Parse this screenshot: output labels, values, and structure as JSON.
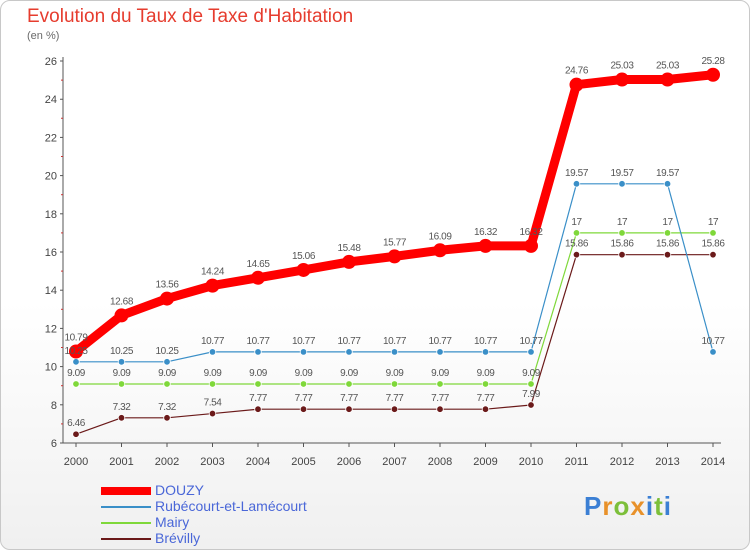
{
  "title": "Evolution du Taux de Taxe d'Habitation",
  "subtitle": "(en %)",
  "chart_data": {
    "type": "line",
    "title": "Evolution du Taux de Taxe d'Habitation",
    "ylabel": "(en %)",
    "xlabel": "",
    "ylim": [
      6,
      26
    ],
    "yticks": [
      6,
      8,
      10,
      12,
      14,
      16,
      18,
      20,
      22,
      24,
      26
    ],
    "grid": false,
    "legend_position": "bottom-left",
    "categories": [
      "2000",
      "2001",
      "2002",
      "2003",
      "2004",
      "2005",
      "2006",
      "2007",
      "2008",
      "2009",
      "2010",
      "2011",
      "2012",
      "2013",
      "2014"
    ],
    "series": [
      {
        "name": "DOUZY",
        "color": "#ff0000",
        "values": [
          10.79,
          12.68,
          13.56,
          14.24,
          14.65,
          15.06,
          15.48,
          15.77,
          16.09,
          16.32,
          16.32,
          24.76,
          25.03,
          25.03,
          25.28
        ],
        "labels": [
          "10.79",
          "12.68",
          "13.56",
          "14.24",
          "14.65",
          "15.06",
          "15.48",
          "15.77",
          "16.09",
          "16.32",
          "16.32",
          "24.76",
          "25.03",
          "25.03",
          "25.28"
        ]
      },
      {
        "name": "Rubécourt-et-Lamécourt",
        "color": "#3a8fc8",
        "values": [
          10.25,
          10.25,
          10.25,
          10.77,
          10.77,
          10.77,
          10.77,
          10.77,
          10.77,
          10.77,
          10.77,
          19.57,
          19.57,
          19.57,
          10.77
        ],
        "labels": [
          "10.25",
          "10.25",
          "10.25",
          "10.77",
          "10.77",
          "10.77",
          "10.77",
          "10.77",
          "10.77",
          "10.77",
          "10.77",
          "19.57",
          "19.57",
          "19.57",
          "10.77"
        ]
      },
      {
        "name": "Mairy",
        "color": "#7fd83a",
        "values": [
          9.09,
          9.09,
          9.09,
          9.09,
          9.09,
          9.09,
          9.09,
          9.09,
          9.09,
          9.09,
          9.09,
          17,
          17,
          17,
          17
        ],
        "labels": [
          "9.09",
          "9.09",
          "9.09",
          "9.09",
          "9.09",
          "9.09",
          "9.09",
          "9.09",
          "9.09",
          "9.09",
          "9.09",
          "17",
          "17",
          "17",
          "17"
        ]
      },
      {
        "name": "Brévilly",
        "color": "#6b1a1a",
        "values": [
          6.46,
          7.32,
          7.32,
          7.54,
          7.77,
          7.77,
          7.77,
          7.77,
          7.77,
          7.77,
          7.99,
          15.86,
          15.86,
          15.86,
          15.86
        ],
        "labels": [
          "6.46",
          "7.32",
          "7.32",
          "7.54",
          "7.77",
          "7.77",
          "7.77",
          "7.77",
          "7.77",
          "7.77",
          "7.99",
          "15.86",
          "15.86",
          "15.86",
          "15.86"
        ]
      }
    ]
  },
  "logo": {
    "letters": [
      "P",
      "r",
      "o",
      "x",
      "i",
      "t",
      "i"
    ],
    "colors": [
      "#3b7fd4",
      "#e8912a",
      "#7cbf3a",
      "#e8912a",
      "#3b7fd4",
      "#7cbf3a",
      "#3b7fd4"
    ]
  }
}
